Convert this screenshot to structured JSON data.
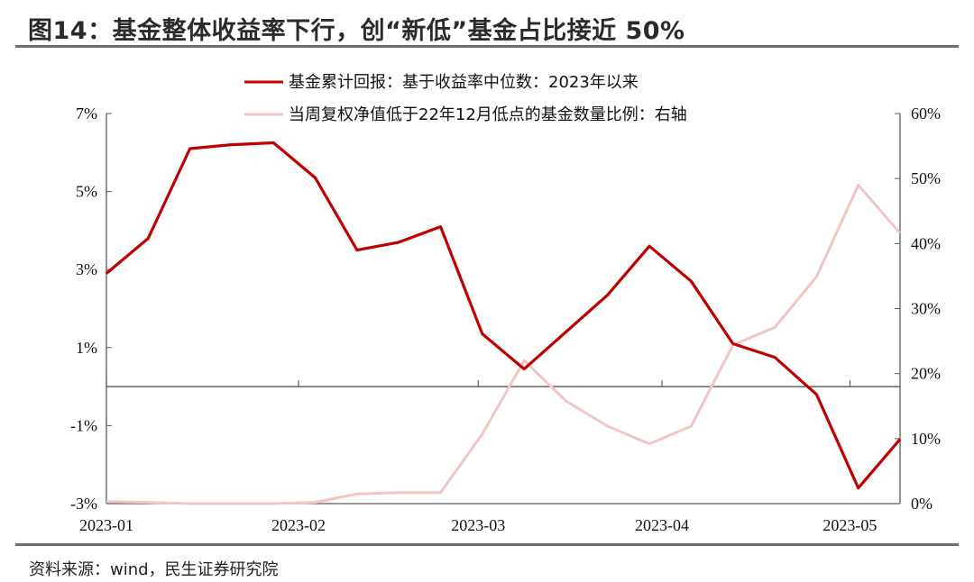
{
  "title": "图14：基金整体收益率下行，创“新低”基金占比接近 50%",
  "source": "资料来源：wind，民生证券研究院",
  "colors": {
    "series1": "#c00000",
    "series2": "#f2c4c4",
    "axis": "#5a5a5a"
  },
  "chart_data": {
    "type": "line",
    "x_tick_labels": [
      "2023-01",
      "2023-02",
      "2023-03",
      "2023-04",
      "2023-05"
    ],
    "left_axis": {
      "min": -3,
      "max": 7,
      "ticks": [
        7,
        5,
        3,
        1,
        -1,
        -3
      ],
      "tick_labels": [
        "7%",
        "5%",
        "3%",
        "1%",
        "-1%",
        "-3%"
      ]
    },
    "right_axis": {
      "min": 0,
      "max": 60,
      "ticks": [
        60,
        50,
        40,
        30,
        20,
        10,
        0
      ],
      "tick_labels": [
        "60%",
        "50%",
        "40%",
        "30%",
        "20%",
        "10%",
        "0%"
      ]
    },
    "legend": {
      "position": "top-center"
    },
    "series": [
      {
        "name": "基金累计回报：基于收益率中位数：2023年以来",
        "axis": "left",
        "values": [
          2.9,
          3.8,
          6.1,
          6.2,
          6.25,
          5.35,
          3.5,
          3.7,
          4.1,
          1.35,
          0.45,
          1.4,
          2.35,
          3.6,
          2.7,
          1.1,
          0.75,
          -0.2,
          -2.6,
          -1.35
        ]
      },
      {
        "name": "当周复权净值低于22年12月低点的基金数量比例：右轴",
        "axis": "right",
        "values": [
          0.3,
          0.2,
          0.0,
          0.0,
          0.0,
          0.2,
          1.5,
          1.7,
          1.7,
          10.7,
          22.0,
          15.8,
          11.9,
          9.2,
          11.9,
          24.4,
          27.1,
          34.9,
          49.0,
          41.6
        ]
      }
    ]
  }
}
